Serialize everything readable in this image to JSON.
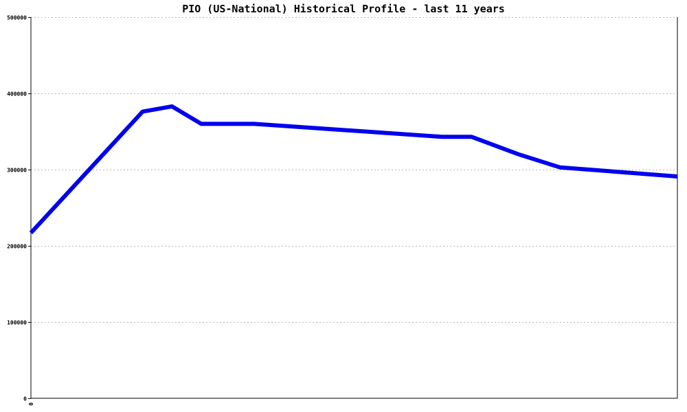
{
  "chart_data": {
    "type": "line",
    "title": "PIO (US-National) Historical Profile - last 11 years",
    "xlabel": "",
    "ylabel": "",
    "ylim": [
      0,
      500000
    ],
    "yticks": [
      {
        "value": 0,
        "label": "0"
      },
      {
        "value": 100000,
        "label": "100000"
      },
      {
        "value": 200000,
        "label": "200000"
      },
      {
        "value": 300000,
        "label": "300000"
      },
      {
        "value": 400000,
        "label": "400000"
      },
      {
        "value": 500000,
        "label": "500000"
      }
    ],
    "xlim": [
      0,
      11
    ],
    "xticks": [
      {
        "value": 0,
        "label": "0"
      }
    ],
    "grid": true,
    "series": [
      {
        "color": "#0000ee",
        "points": [
          {
            "x": 0,
            "y": 217000
          },
          {
            "x": 1.9,
            "y": 376000
          },
          {
            "x": 2.4,
            "y": 383000
          },
          {
            "x": 2.9,
            "y": 360000
          },
          {
            "x": 3.8,
            "y": 360000
          },
          {
            "x": 7.0,
            "y": 343000
          },
          {
            "x": 7.5,
            "y": 343000
          },
          {
            "x": 8.3,
            "y": 320000
          },
          {
            "x": 9.0,
            "y": 303000
          },
          {
            "x": 11.0,
            "y": 291000
          }
        ]
      }
    ]
  }
}
